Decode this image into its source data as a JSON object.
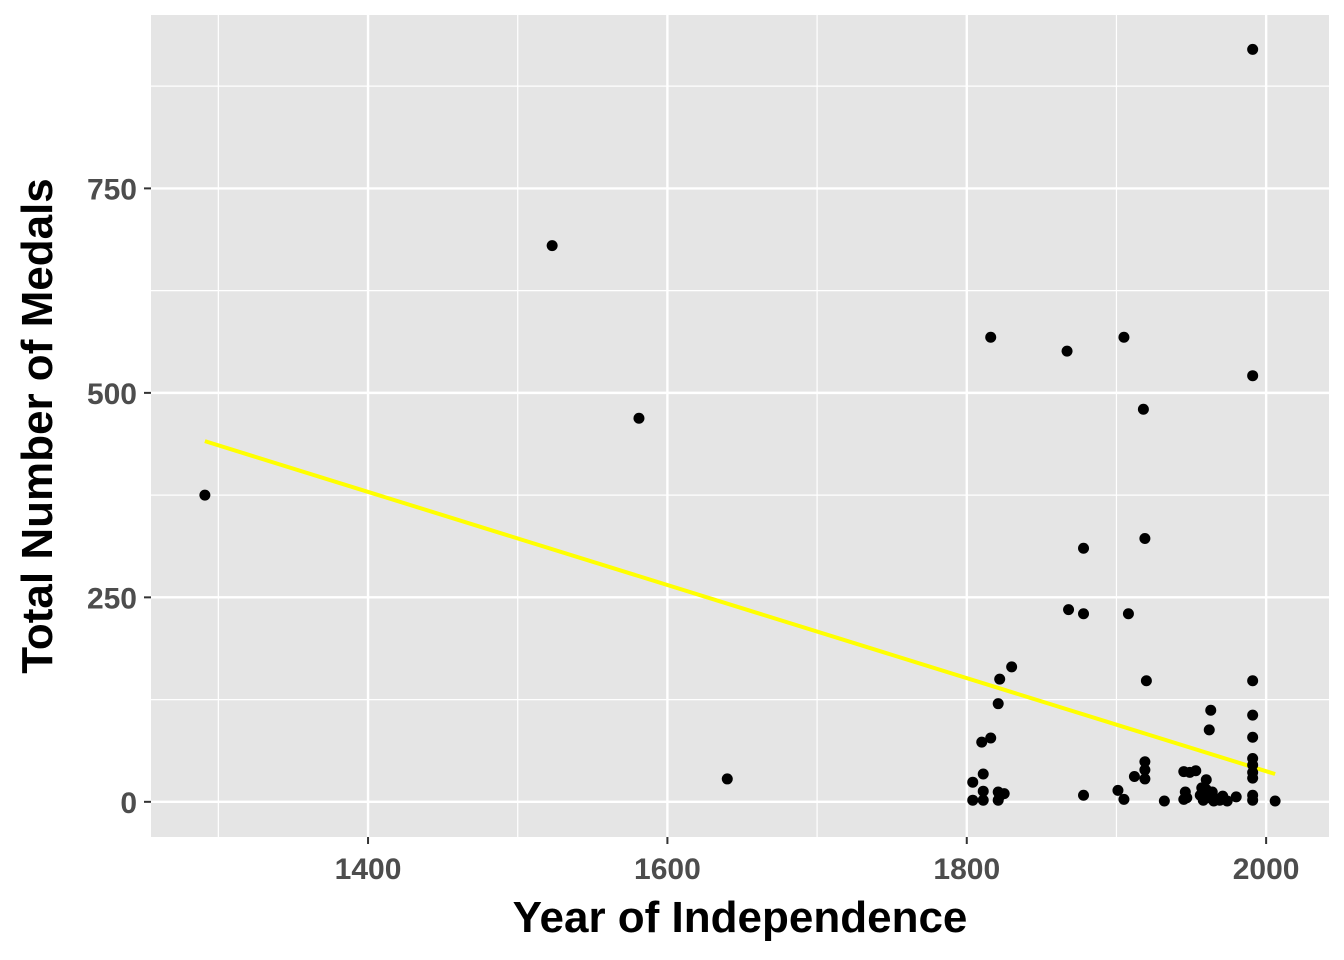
{
  "chart_data": {
    "type": "scatter",
    "title": "",
    "xlabel": "Year of Independence",
    "ylabel": "Total Number of Medals",
    "xlim": [
      1255,
      2042
    ],
    "ylim": [
      -43,
      962
    ],
    "x_major_ticks": [
      1400,
      1600,
      1800,
      2000
    ],
    "x_minor_ticks": [
      1300,
      1500,
      1700,
      1900
    ],
    "y_major_ticks": [
      0,
      250,
      500,
      750
    ],
    "y_minor_ticks": [
      125,
      375,
      625,
      875
    ],
    "x_tick_labels": [
      "1400",
      "1600",
      "1800",
      "2000"
    ],
    "y_tick_labels": [
      "0",
      "250",
      "500",
      "750"
    ],
    "grid": true,
    "legend": "none",
    "colors": {
      "panel": "#e5e5e5",
      "grid": "#ffffff",
      "point": "#000000",
      "trend_line": "#ffff00"
    },
    "series": [
      {
        "type": "scatter",
        "points": [
          [
            1291,
            375
          ],
          [
            1523,
            680
          ],
          [
            1581,
            469
          ],
          [
            1640,
            28
          ],
          [
            1804,
            24
          ],
          [
            1804,
            2
          ],
          [
            1810,
            73
          ],
          [
            1811,
            34
          ],
          [
            1811,
            13
          ],
          [
            1811,
            2
          ],
          [
            1816,
            78
          ],
          [
            1816,
            568
          ],
          [
            1821,
            120
          ],
          [
            1821,
            12
          ],
          [
            1821,
            2
          ],
          [
            1822,
            150
          ],
          [
            1822,
            7
          ],
          [
            1825,
            10
          ],
          [
            1830,
            165
          ],
          [
            1867,
            551
          ],
          [
            1868,
            235
          ],
          [
            1878,
            310
          ],
          [
            1878,
            230
          ],
          [
            1878,
            8
          ],
          [
            1901,
            14
          ],
          [
            1905,
            3
          ],
          [
            1905,
            568
          ],
          [
            1908,
            230
          ],
          [
            1912,
            31
          ],
          [
            1918,
            480
          ],
          [
            1919,
            322
          ],
          [
            1919,
            49
          ],
          [
            1919,
            39
          ],
          [
            1919,
            28
          ],
          [
            1920,
            148
          ],
          [
            1932,
            1
          ],
          [
            1945,
            3
          ],
          [
            1945,
            37
          ],
          [
            1946,
            12
          ],
          [
            1947,
            5
          ],
          [
            1949,
            36
          ],
          [
            1953,
            38
          ],
          [
            1956,
            8
          ],
          [
            1957,
            17
          ],
          [
            1958,
            2
          ],
          [
            1960,
            27
          ],
          [
            1960,
            15
          ],
          [
            1962,
            5
          ],
          [
            1962,
            88
          ],
          [
            1963,
            112
          ],
          [
            1964,
            12
          ],
          [
            1965,
            1
          ],
          [
            1966,
            4
          ],
          [
            1969,
            2
          ],
          [
            1971,
            7
          ],
          [
            1974,
            1
          ],
          [
            1980,
            6
          ],
          [
            1991,
            920
          ],
          [
            1991,
            521
          ],
          [
            1991,
            148
          ],
          [
            1991,
            106
          ],
          [
            1991,
            79
          ],
          [
            1991,
            53
          ],
          [
            1991,
            45
          ],
          [
            1991,
            36
          ],
          [
            1991,
            29
          ],
          [
            1991,
            8
          ],
          [
            1991,
            2
          ],
          [
            2006,
            1
          ]
        ]
      },
      {
        "type": "line",
        "method": "linear regression",
        "points": [
          [
            1291,
            441
          ],
          [
            2006,
            34
          ]
        ]
      }
    ]
  }
}
